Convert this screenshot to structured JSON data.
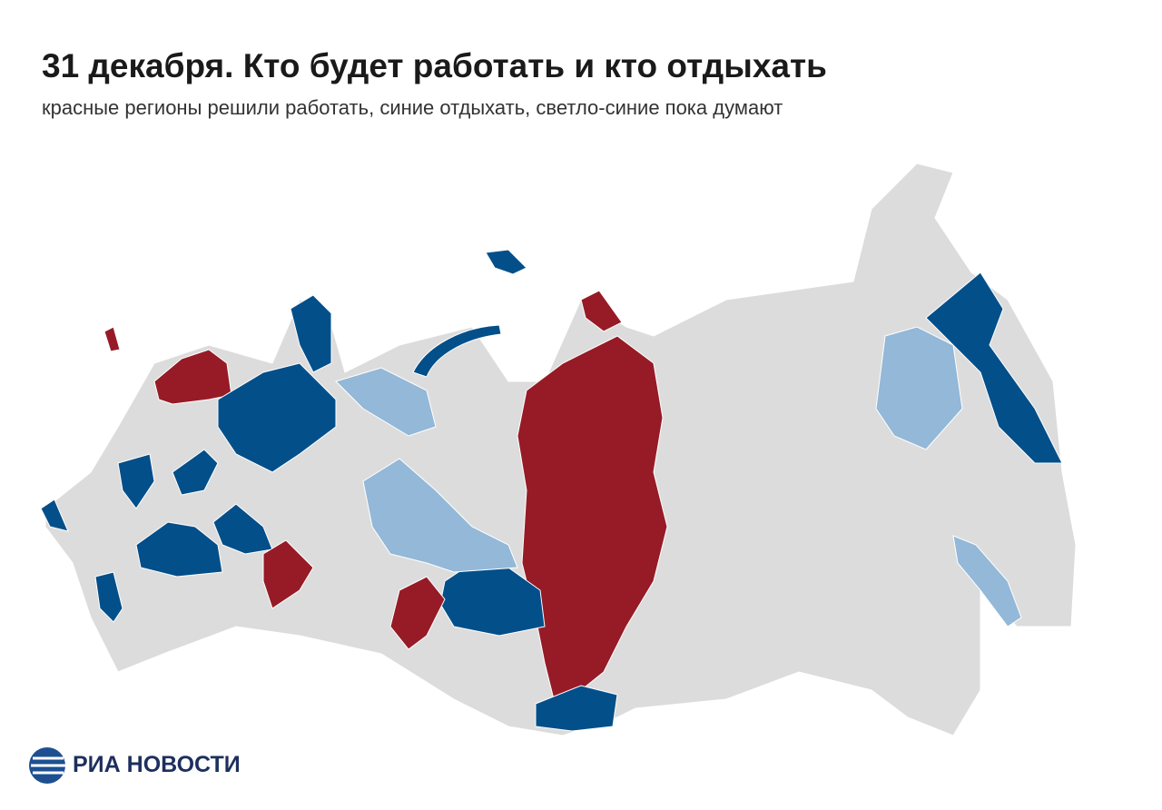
{
  "header": {
    "title": "31 декабря. Кто будет работать и кто отдыхать",
    "subtitle": "красные регионы решили работать, синие отдыхать, светло-синие пока думают"
  },
  "footer": {
    "logo": "РИА НОВОСТИ"
  }
}
